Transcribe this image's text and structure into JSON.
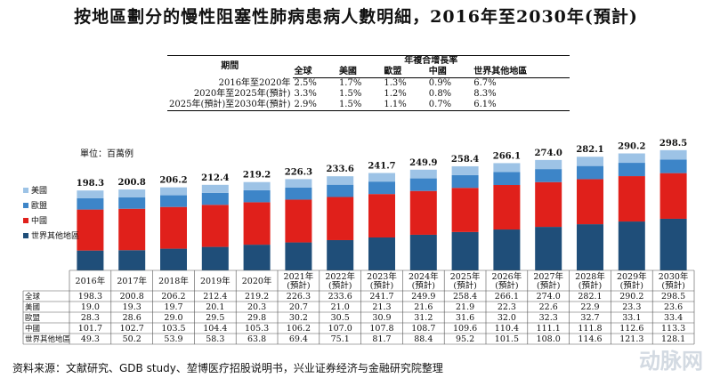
{
  "title": "按地區劃分的慢性阻塞性肺病患病人數明細，2016年至2030年(預計)",
  "cagr_table": {
    "header_period": "期間",
    "header_group": "年複合增長率",
    "columns": [
      "全球",
      "美國",
      "歐盟",
      "中國",
      "世界其他地區"
    ],
    "rows": [
      {
        "period": "2016年至2020年",
        "values": [
          "2.5%",
          "1.7%",
          "1.3%",
          "0.9%",
          "6.7%"
        ]
      },
      {
        "period": "2020年至2025年(預計)",
        "values": [
          "3.3%",
          "1.5%",
          "1.2%",
          "0.8%",
          "8.3%"
        ]
      },
      {
        "period": "2025年(預計)至2030年(預計)",
        "values": [
          "2.9%",
          "1.5%",
          "1.1%",
          "0.7%",
          "6.1%"
        ]
      }
    ]
  },
  "unit": "單位：百萬例",
  "chart_data": {
    "type": "bar",
    "stacked": true,
    "categories": [
      "2016年",
      "2017年",
      "2018年",
      "2019年",
      "2020年",
      "2021年(預計)",
      "2022年(預計)",
      "2023年(預計)",
      "2024年(預計)",
      "2025年(預計)",
      "2026年(預計)",
      "2027年(預計)",
      "2028年(預計)",
      "2029年(預計)",
      "2030年(預計)"
    ],
    "categories_line1": [
      "2016年",
      "2017年",
      "2018年",
      "2019年",
      "2020年",
      "2021年",
      "2022年",
      "2023年",
      "2024年",
      "2025年",
      "2026年",
      "2027年",
      "2028年",
      "2029年",
      "2030年"
    ],
    "categories_line2": [
      "",
      "",
      "",
      "",
      "",
      "(預計)",
      "(預計)",
      "(預計)",
      "(預計)",
      "(預計)",
      "(預計)",
      "(預計)",
      "(預計)",
      "(預計)",
      "(預計)"
    ],
    "totals": [
      198.3,
      200.8,
      206.2,
      212.4,
      219.2,
      226.3,
      233.6,
      241.7,
      249.9,
      258.4,
      266.1,
      274.0,
      282.1,
      290.2,
      298.5
    ],
    "totals_label": "全球",
    "series": [
      {
        "name": "世界其他地區",
        "color": "#1f4e79",
        "values": [
          49.3,
          50.2,
          53.9,
          58.3,
          63.8,
          69.4,
          75.1,
          81.7,
          88.4,
          95.2,
          101.5,
          108.0,
          114.6,
          121.3,
          128.1
        ]
      },
      {
        "name": "中國",
        "color": "#e0201b",
        "values": [
          101.7,
          102.7,
          103.5,
          104.4,
          105.3,
          106.2,
          107.0,
          107.8,
          108.7,
          109.6,
          110.4,
          111.1,
          111.8,
          112.6,
          113.3
        ]
      },
      {
        "name": "歐盟",
        "color": "#3d85c8",
        "values": [
          28.3,
          28.6,
          29.0,
          29.5,
          29.8,
          30.2,
          30.5,
          30.9,
          31.2,
          31.6,
          32.0,
          32.3,
          32.7,
          33.1,
          33.4
        ]
      },
      {
        "name": "美國",
        "color": "#9dc3e6",
        "values": [
          19.0,
          19.3,
          19.7,
          20.1,
          20.3,
          20.7,
          21.0,
          21.3,
          21.6,
          21.9,
          22.3,
          22.6,
          22.9,
          23.3,
          23.6
        ]
      }
    ],
    "legend_order": [
      "美國",
      "歐盟",
      "中國",
      "世界其他地區"
    ],
    "table_row_order": [
      "全球",
      "美國",
      "歐盟",
      "中國",
      "世界其他地區"
    ],
    "ylim": [
      0,
      300
    ],
    "legend_position": "left"
  },
  "source": "资料来源：文献研究、GDB study、堃博医疗招股说明书，兴业证券经济与金融研究院整理",
  "watermark": "动脉网"
}
